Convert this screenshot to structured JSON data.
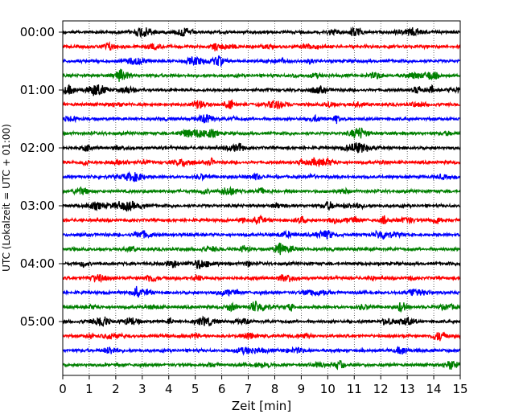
{
  "chart_data": {
    "type": "line",
    "subtype": "seismogram-helicorder",
    "xlabel": "Zeit  [min]",
    "ylabel": "UTC (Lokalzeit = UTC + 01:00)",
    "xlim": [
      0,
      15
    ],
    "x_ticks": [
      "0",
      "1",
      "2",
      "3",
      "4",
      "5",
      "6",
      "7",
      "8",
      "9",
      "10",
      "11",
      "12",
      "13",
      "14",
      "15"
    ],
    "y_ticks": [
      "00:00",
      "01:00",
      "02:00",
      "03:00",
      "04:00",
      "05:00"
    ],
    "trace_minutes": 15,
    "trace_count": 24,
    "trace_colors": [
      "#000000",
      "#ff0000",
      "#0000ff",
      "#008000"
    ],
    "grid": {
      "vertical_dotted": true
    }
  }
}
